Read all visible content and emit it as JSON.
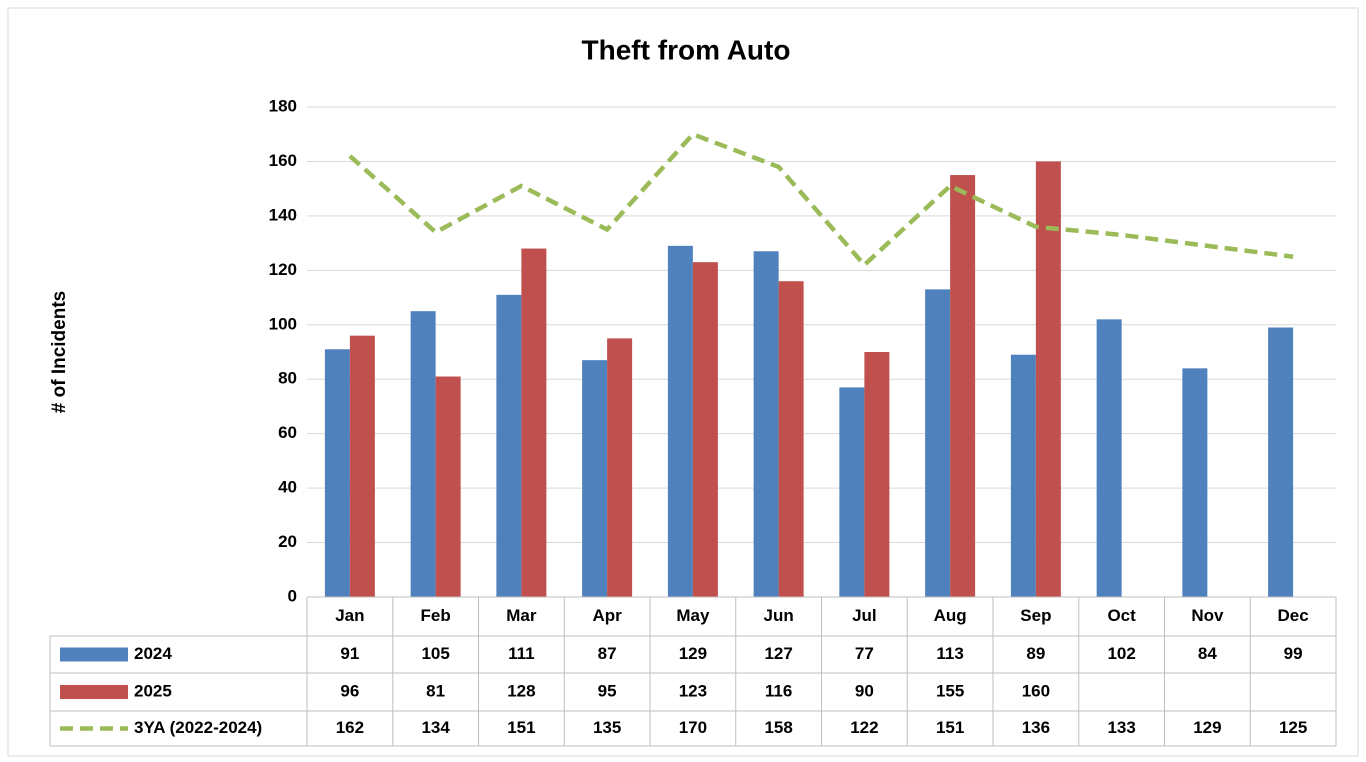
{
  "chart_data": {
    "type": "bar-line",
    "title": "Theft from Auto",
    "y_label": "# of Incidents",
    "categories": [
      "Jan",
      "Feb",
      "Mar",
      "Apr",
      "May",
      "Jun",
      "Jul",
      "Aug",
      "Sep",
      "Oct",
      "Nov",
      "Dec"
    ],
    "series": [
      {
        "name": "2024",
        "type": "bar",
        "color": "#4f81bd",
        "values": [
          91,
          105,
          111,
          87,
          129,
          127,
          77,
          113,
          89,
          102,
          84,
          99
        ]
      },
      {
        "name": "2025",
        "type": "bar",
        "color": "#c0504d",
        "values": [
          96,
          81,
          128,
          95,
          123,
          116,
          90,
          155,
          160,
          null,
          null,
          null
        ]
      },
      {
        "name": "3YA (2022-2024)",
        "type": "line",
        "color": "#9bbb59",
        "values": [
          162,
          134,
          151,
          135,
          170,
          158,
          122,
          151,
          136,
          133,
          129,
          125
        ]
      }
    ],
    "ylim": [
      0,
      180
    ],
    "yticks": [
      0,
      20,
      40,
      60,
      80,
      100,
      120,
      140,
      160,
      180
    ],
    "grid": true
  }
}
